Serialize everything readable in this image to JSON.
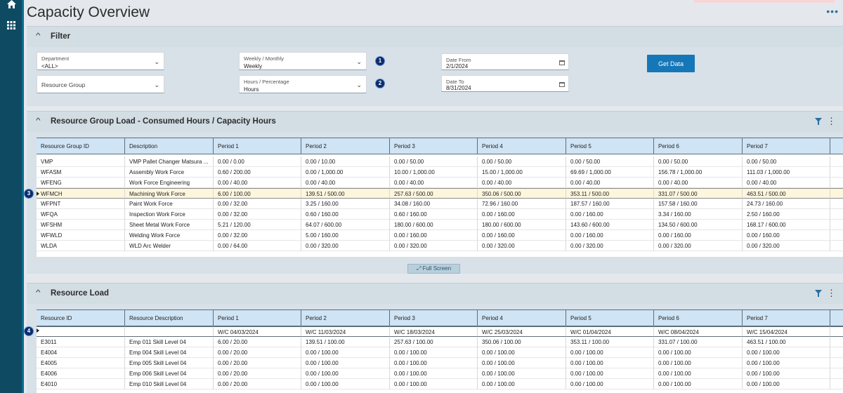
{
  "page": {
    "title": "Capacity Overview"
  },
  "filter": {
    "title": "Filter",
    "department": {
      "label": "Department",
      "value": "<ALL>"
    },
    "resource_group": {
      "placeholder": "Resource Group"
    },
    "weekly_monthly": {
      "label": "Weekly / Monthly",
      "value": "Weekly"
    },
    "hours_percentage": {
      "label": "Hours / Percentage",
      "value": "Hours"
    },
    "date_from": {
      "label": "Date From",
      "value": "2/1/2024"
    },
    "date_to": {
      "label": "Date To",
      "value": "8/31/2024"
    },
    "get_data": "Get Data",
    "badges": [
      "1",
      "2"
    ]
  },
  "group_load": {
    "title": "Resource Group Load - Consumed Hours / Capacity Hours",
    "columns": [
      "Resource Group ID",
      "Description",
      "Period 1",
      "Period 2",
      "Period 3",
      "Period 4",
      "Period 5",
      "Period 6",
      "Period 7"
    ],
    "rows": [
      [
        "VMP",
        "VMP Pallet Changer Matsura ...",
        "0.00 / 0.00",
        "0.00 / 10.00",
        "0.00 / 50.00",
        "0.00 / 50.00",
        "0.00 / 50.00",
        "0.00 / 50.00",
        "0.00 / 50.00"
      ],
      [
        "WFASM",
        "Assembly Work Force",
        "0.60 / 200.00",
        "0.00 / 1,000.00",
        "10.00 / 1,000.00",
        "15.00 / 1,000.00",
        "69.69 / 1,000.00",
        "156.78 / 1,000.00",
        "111.03 / 1,000.00"
      ],
      [
        "WFENG",
        "Work Force Engineering",
        "0.00 / 40.00",
        "0.00 / 40.00",
        "0.00 / 40.00",
        "0.00 / 40.00",
        "0.00 / 40.00",
        "0.00 / 40.00",
        "0.00 / 40.00"
      ],
      [
        "WFMCH",
        "Machining Work Force",
        "6.00 / 100.00",
        "139.51 / 500.00",
        "257.63 / 500.00",
        "350.06 / 500.00",
        "353.11 / 500.00",
        "331.07 / 500.00",
        "463.51 / 500.00"
      ],
      [
        "WFPNT",
        "Paint Work Force",
        "0.00 / 32.00",
        "3.25 / 160.00",
        "34.08 / 160.00",
        "72.96 / 160.00",
        "187.57 / 160.00",
        "157.58 / 160.00",
        "24.73 / 160.00"
      ],
      [
        "WFQA",
        "Inspection Work Force",
        "0.00 / 32.00",
        "0.60 / 160.00",
        "0.60 / 160.00",
        "0.00 / 160.00",
        "0.00 / 160.00",
        "3.34 / 160.00",
        "2.50 / 160.00"
      ],
      [
        "WFSHM",
        "Sheet Metal Work Force",
        "5.21 / 120.00",
        "64.07 / 600.00",
        "180.00 / 600.00",
        "180.00 / 600.00",
        "143.60 / 600.00",
        "134.50 / 600.00",
        "168.17 / 600.00"
      ],
      [
        "WFWLD",
        "Welding Work Force",
        "0.00 / 32.00",
        "5.00 / 160.00",
        "0.00 / 160.00",
        "0.00 / 160.00",
        "0.00 / 160.00",
        "0.00 / 160.00",
        "0.00 / 160.00"
      ],
      [
        "WLDA",
        "WLD Arc Welder",
        "0.00 / 64.00",
        "0.00 / 320.00",
        "0.00 / 320.00",
        "0.00 / 320.00",
        "0.00 / 320.00",
        "0.00 / 320.00",
        "0.00 / 320.00"
      ]
    ],
    "selected_badge": "3",
    "full_screen": "Full Screen"
  },
  "resource_load": {
    "title": "Resource Load",
    "columns": [
      "Resource ID",
      "Resource Description",
      "Period 1",
      "Period 2",
      "Period 3",
      "Period 4",
      "Period 5",
      "Period 6",
      "Period 7"
    ],
    "week_row": [
      "",
      "",
      "W/C 04/03/2024",
      "W/C 11/03/2024",
      "W/C 18/03/2024",
      "W/C 25/03/2024",
      "W/C 01/04/2024",
      "W/C 08/04/2024",
      "W/C 15/04/2024"
    ],
    "rows": [
      [
        "E3011",
        "Emp 011 Skill Level 04",
        "6.00 / 20.00",
        "139.51 / 100.00",
        "257.63 / 100.00",
        "350.06 / 100.00",
        "353.11 / 100.00",
        "331.07 / 100.00",
        "463.51 / 100.00"
      ],
      [
        "E4004",
        "Emp 004 Skill Level 04",
        "0.00 / 20.00",
        "0.00 / 100.00",
        "0.00 / 100.00",
        "0.00 / 100.00",
        "0.00 / 100.00",
        "0.00 / 100.00",
        "0.00 / 100.00"
      ],
      [
        "E4005",
        "Emp 005 Skill Level 04",
        "0.00 / 20.00",
        "0.00 / 100.00",
        "0.00 / 100.00",
        "0.00 / 100.00",
        "0.00 / 100.00",
        "0.00 / 100.00",
        "0.00 / 100.00"
      ],
      [
        "E4006",
        "Emp 006 Skill Level 04",
        "0.00 / 20.00",
        "0.00 / 100.00",
        "0.00 / 100.00",
        "0.00 / 100.00",
        "0.00 / 100.00",
        "0.00 / 100.00",
        "0.00 / 100.00"
      ],
      [
        "E4010",
        "Emp 010 Skill Level 04",
        "0.00 / 20.00",
        "0.00 / 100.00",
        "0.00 / 100.00",
        "0.00 / 100.00",
        "0.00 / 100.00",
        "0.00 / 100.00",
        "0.00 / 100.00"
      ]
    ],
    "week_badge": "4"
  },
  "icons": {
    "home": "home-icon",
    "apps": "apps-grid-icon",
    "filter": "funnel-icon",
    "more": "kebab-icon",
    "expand": "expand-icon"
  },
  "colors": {
    "sidebar": "#0f4a63",
    "header": "#cfe4f5",
    "selected_row": "#fdf6dd",
    "accent": "#1577b8",
    "badge": "#0b2c6b"
  }
}
